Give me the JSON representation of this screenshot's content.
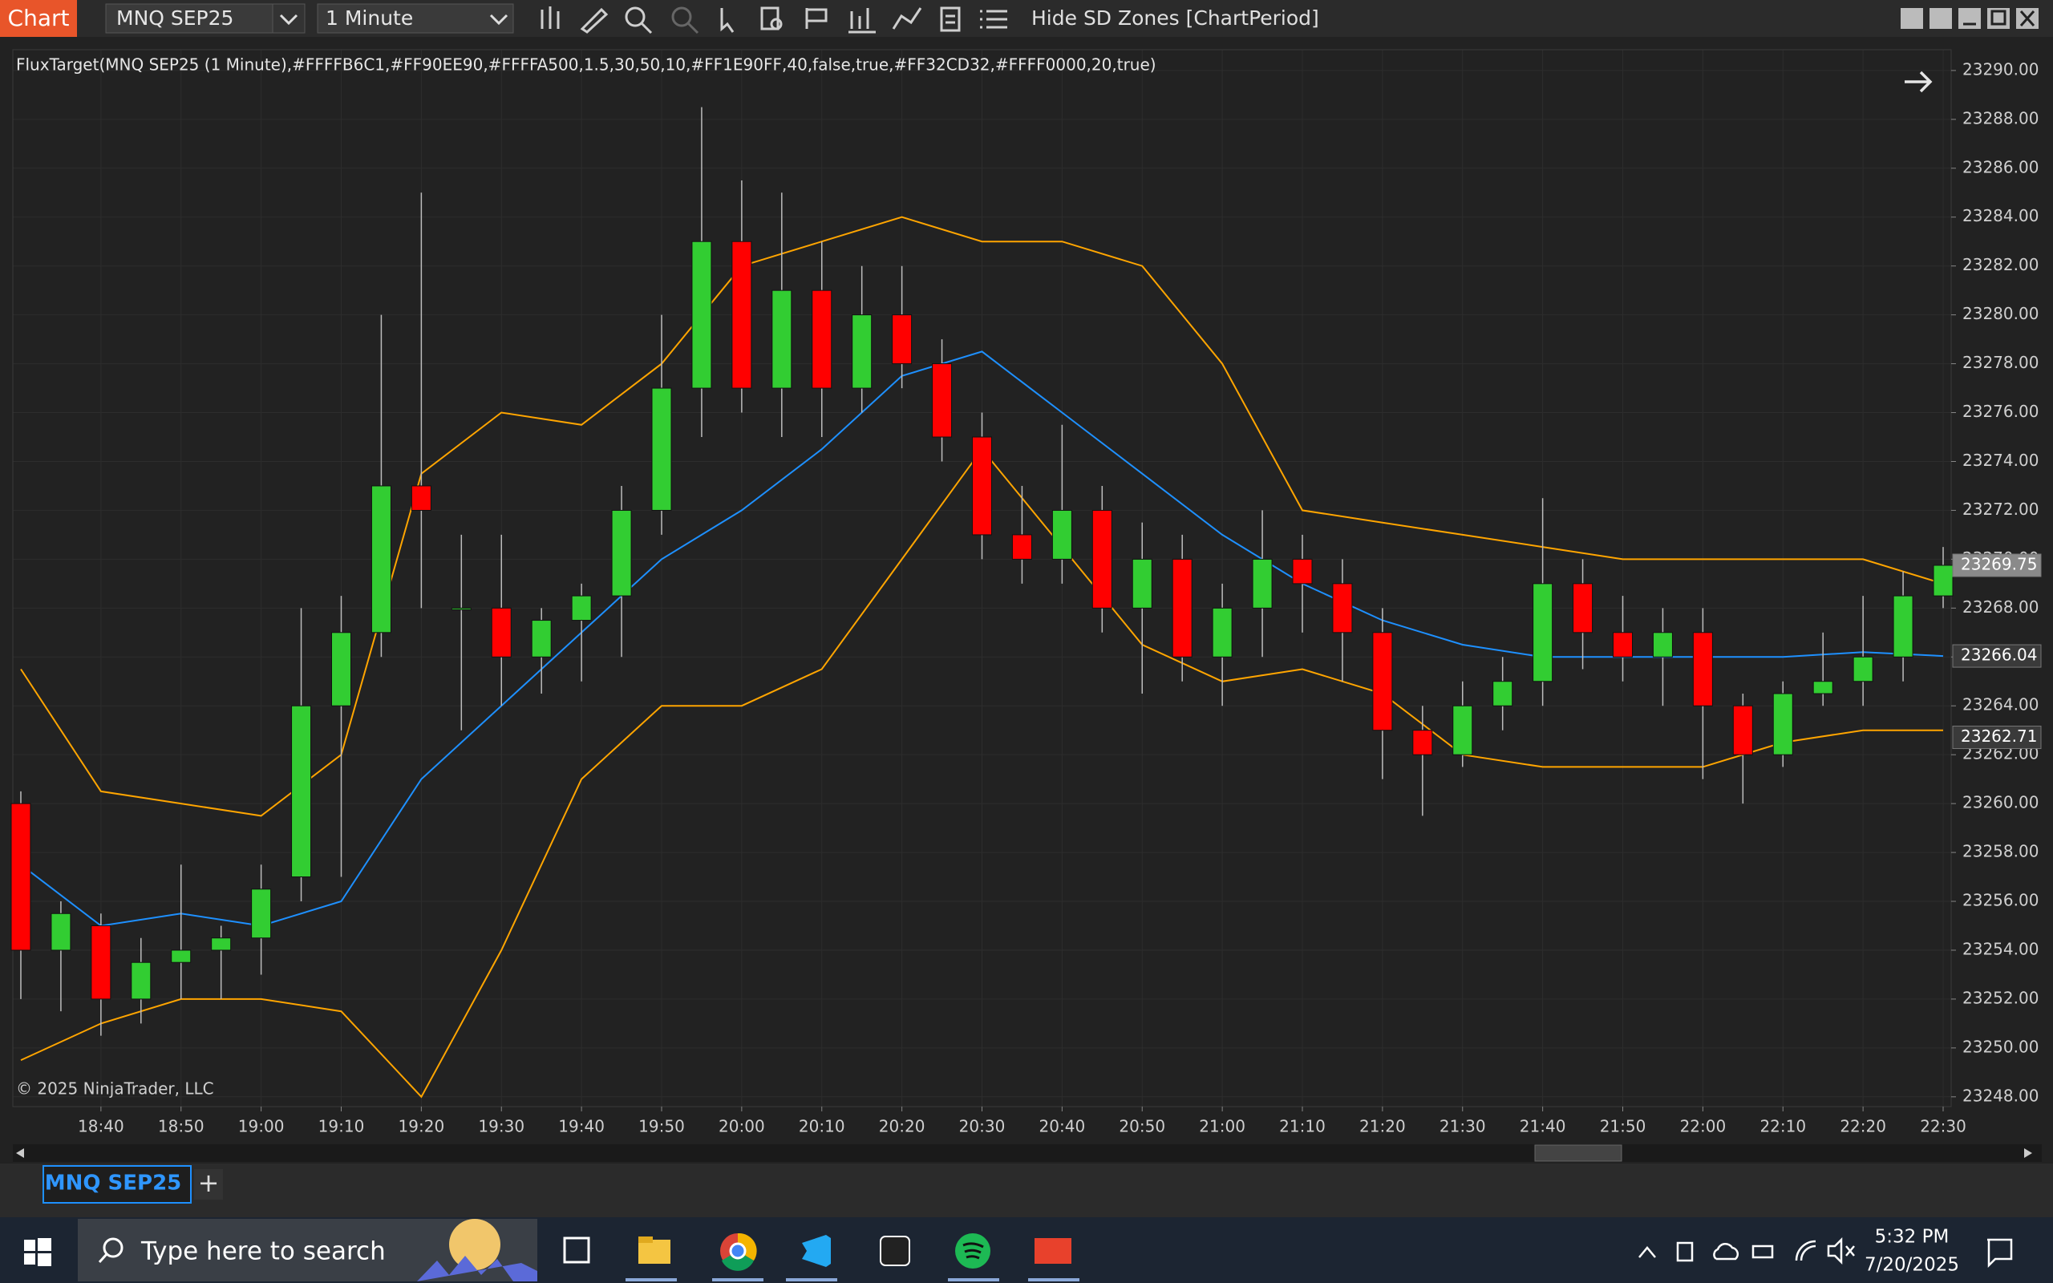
{
  "toolbar": {
    "window_label": "Chart",
    "instrument": "MNQ SEP25",
    "interval": "1 Minute",
    "toggle": "Hide SD Zones [ChartPeriod]"
  },
  "chart_data": {
    "type": "candlestick",
    "indicator_label": "FluxTarget(MNQ SEP25 (1 Minute),#FFFFB6C1,#FF90EE90,#FFFFA500,1.5,30,50,10,#FF1E90FF,40,false,true,#FF32CD32,#FFFF0000,20,true)",
    "watermark": "© 2025 NinjaTrader, LLC",
    "up_color": "#32CD32",
    "down_color": "#FF0000",
    "x": [
      "18:30",
      "18:35",
      "18:40",
      "18:45",
      "18:50",
      "18:55",
      "19:00",
      "19:05",
      "19:10",
      "19:15",
      "19:20",
      "19:25",
      "19:30",
      "19:35",
      "19:40",
      "19:45",
      "19:50",
      "19:55",
      "20:00",
      "20:05",
      "20:10",
      "20:15",
      "20:20",
      "20:25",
      "20:30",
      "20:35",
      "20:40",
      "20:45",
      "20:50",
      "20:55",
      "21:00",
      "21:05",
      "21:10",
      "21:15",
      "21:20",
      "21:25",
      "21:30",
      "21:35",
      "21:40",
      "21:45",
      "21:50",
      "21:55",
      "22:00",
      "22:05",
      "22:10",
      "22:15",
      "22:20",
      "22:25",
      "22:30"
    ],
    "open": [
      23260,
      23254,
      23255,
      23252,
      23253.5,
      23254,
      23254.5,
      23257,
      23264,
      23267,
      23273,
      23268,
      23268,
      23266,
      23267.5,
      23268.5,
      23272,
      23277,
      23283,
      23277,
      23281,
      23277,
      23280,
      23278,
      23275,
      23271,
      23270,
      23272,
      23268,
      23270,
      23266,
      23268,
      23270,
      23269,
      23267,
      23263,
      23262,
      23264,
      23265,
      23269,
      23267,
      23266,
      23267,
      23264,
      23262,
      23264.5,
      23265,
      23266,
      23268.5
    ],
    "high": [
      23260.5,
      23256,
      23255.5,
      23254.5,
      23257.5,
      23255,
      23257.5,
      23268,
      23268.5,
      23280,
      23285,
      23271,
      23271,
      23268,
      23269,
      23273,
      23280,
      23288.5,
      23285.5,
      23285,
      23283,
      23282,
      23282,
      23279,
      23276,
      23273,
      23275.5,
      23273,
      23271.5,
      23271,
      23269,
      23272,
      23271,
      23270,
      23268,
      23264,
      23265,
      23266,
      23272.5,
      23270,
      23268.5,
      23268,
      23268,
      23264.5,
      23265,
      23267,
      23268.5,
      23269.5,
      23270.5
    ],
    "low": [
      23252,
      23251.5,
      23250.5,
      23251,
      23252,
      23252,
      23253,
      23256,
      23257,
      23266,
      23268,
      23263,
      23264,
      23264.5,
      23265,
      23266,
      23271,
      23275,
      23276,
      23275,
      23275,
      23276,
      23277,
      23274,
      23270,
      23269,
      23269,
      23267,
      23264.5,
      23265,
      23264,
      23266,
      23267,
      23265,
      23261,
      23259.5,
      23261.5,
      23263,
      23264,
      23265.5,
      23265,
      23264,
      23261,
      23260,
      23261.5,
      23264,
      23264,
      23265,
      23268
    ],
    "close": [
      23254,
      23255.5,
      23252,
      23253.5,
      23254,
      23254.5,
      23256.5,
      23264,
      23267,
      23273,
      23272,
      23268,
      23266,
      23267.5,
      23268.5,
      23272,
      23277,
      23283,
      23277,
      23281,
      23277,
      23280,
      23278,
      23275,
      23271,
      23270,
      23272,
      23268,
      23270,
      23266,
      23268,
      23270,
      23269,
      23267,
      23263,
      23262,
      23264,
      23265,
      23269,
      23267,
      23266,
      23267,
      23264,
      23262,
      23264.5,
      23265,
      23266,
      23268.5,
      23269.75
    ],
    "overlays": [
      {
        "color": "#1E90FF",
        "x": [
          "18:30",
          "18:40",
          "18:50",
          "19:00",
          "19:10",
          "19:20",
          "19:30",
          "19:40",
          "19:50",
          "20:00",
          "20:10",
          "20:20",
          "20:30",
          "20:40",
          "20:50",
          "21:00",
          "21:10",
          "21:20",
          "21:30",
          "21:40",
          "21:50",
          "22:00",
          "22:10",
          "22:20",
          "22:30"
        ],
        "values": [
          23257.5,
          23255,
          23255.5,
          23255,
          23256,
          23261,
          23264,
          23267,
          23270,
          23272,
          23274.5,
          23277.5,
          23278.5,
          23276,
          23273.5,
          23271,
          23269,
          23267.5,
          23266.5,
          23266,
          23266,
          23266,
          23266,
          23266.2,
          23266.04
        ]
      },
      {
        "color": "#FFA500",
        "x": [
          "18:30",
          "18:40",
          "18:50",
          "19:00",
          "19:10",
          "19:20",
          "19:30",
          "19:40",
          "19:50",
          "20:00",
          "20:10",
          "20:20",
          "20:30",
          "20:40",
          "20:50",
          "21:00",
          "21:10",
          "21:20",
          "21:30",
          "21:40",
          "21:50",
          "22:00",
          "22:10",
          "22:20",
          "22:30"
        ],
        "values": [
          23265.5,
          23260.5,
          23260,
          23259.5,
          23262,
          23273.5,
          23276,
          23275.5,
          23278,
          23282,
          23283,
          23284,
          23283,
          23283,
          23282,
          23278,
          23272,
          23271.5,
          23271,
          23270.5,
          23270,
          23270,
          23270,
          23270,
          23269
        ]
      },
      {
        "color": "#FFA500",
        "x": [
          "18:30",
          "18:40",
          "18:50",
          "19:00",
          "19:10",
          "19:20",
          "19:30",
          "19:40",
          "19:50",
          "20:00",
          "20:10",
          "20:20",
          "20:30",
          "20:40",
          "20:50",
          "21:00",
          "21:10",
          "21:20",
          "21:30",
          "21:40",
          "21:50",
          "22:00",
          "22:10",
          "22:20",
          "22:30"
        ],
        "values": [
          23249.5,
          23251,
          23252,
          23252,
          23251.5,
          23248,
          23254,
          23261,
          23264,
          23264,
          23265.5,
          23270,
          23274.5,
          23270.5,
          23266.5,
          23265,
          23265.5,
          23264.5,
          23262,
          23261.5,
          23261.5,
          23261.5,
          23262.5,
          23263,
          23263
        ]
      }
    ],
    "price_markers": [
      23269.75,
      23266.04,
      23262.71
    ],
    "xlim": [
      "18:29",
      "22:31"
    ],
    "xticks": [
      "18:40",
      "18:50",
      "19:00",
      "19:10",
      "19:20",
      "19:30",
      "19:40",
      "19:50",
      "20:00",
      "20:10",
      "20:20",
      "20:30",
      "20:40",
      "20:50",
      "21:00",
      "21:10",
      "21:20",
      "21:30",
      "21:40",
      "21:50",
      "22:00",
      "22:10",
      "22:20",
      "22:30"
    ],
    "ylim": [
      23247.6,
      23290.85
    ],
    "yticks": [
      {
        "value": 23248,
        "label": "23248.00"
      },
      {
        "value": 23250,
        "label": "23250.00"
      },
      {
        "value": 23252,
        "label": "23252.00"
      },
      {
        "value": 23254,
        "label": "23254.00"
      },
      {
        "value": 23256,
        "label": "23256.00"
      },
      {
        "value": 23258,
        "label": "23258.00"
      },
      {
        "value": 23260,
        "label": "23260.00"
      },
      {
        "value": 23262,
        "label": "23262.00"
      },
      {
        "value": 23264,
        "label": "23264.00"
      },
      {
        "value": 23266,
        "label": "23266.00"
      },
      {
        "value": 23268,
        "label": "23268.00"
      },
      {
        "value": 23270,
        "label": "23270.00"
      },
      {
        "value": 23272,
        "label": "23272.00"
      },
      {
        "value": 23274,
        "label": "23274.00"
      },
      {
        "value": 23276,
        "label": "23276.00"
      },
      {
        "value": 23278,
        "label": "23278.00"
      },
      {
        "value": 23280,
        "label": "23280.00"
      },
      {
        "value": 23282,
        "label": "23282.00"
      },
      {
        "value": 23284,
        "label": "23284.00"
      },
      {
        "value": 23286,
        "label": "23286.00"
      },
      {
        "value": 23288,
        "label": "23288.00"
      },
      {
        "value": 23290,
        "label": "23290.00"
      }
    ],
    "grid": true
  },
  "tabs": {
    "active": "MNQ SEP25",
    "add": "+"
  },
  "taskbar": {
    "search": "Type here to search",
    "time": "5:32 PM",
    "date": "7/20/2025"
  }
}
